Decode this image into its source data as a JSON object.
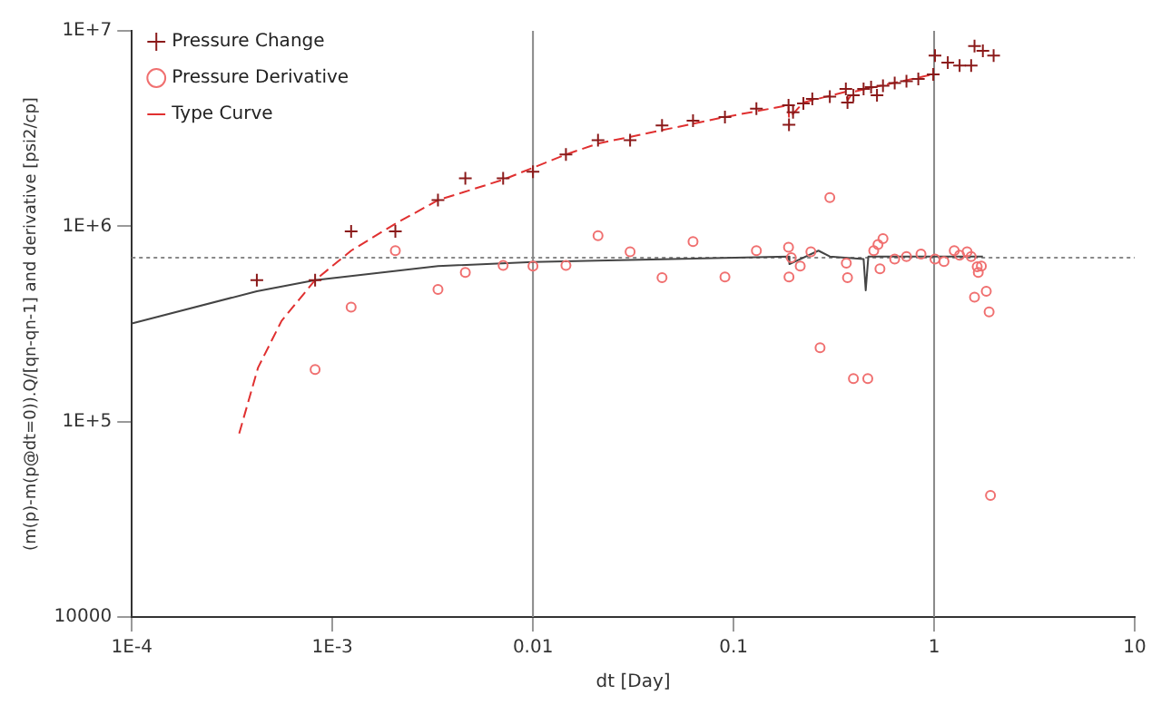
{
  "chart_data": {
    "type": "scatter",
    "xlabel": "dt [Day]",
    "ylabel": "(m(p)-m(p@dt=0)).Q/[qn-qn-1] and derivative [psi2/cp]",
    "log": "xy",
    "grid": false,
    "legend": "top left",
    "xlim": [
      0.0001,
      10
    ],
    "xticks": [
      {
        "value": 0.0001,
        "label": "1E-4"
      },
      {
        "value": 0.001,
        "label": "1E-3"
      },
      0.01,
      0.1,
      1,
      10
    ],
    "ylim": [
      10000,
      10000000
    ],
    "yticks": [
      10000,
      {
        "value": 100000,
        "label": "1E+5"
      },
      {
        "value": 1000000,
        "label": "1E+6"
      },
      {
        "value": 10000000,
        "label": "1E+7"
      }
    ],
    "ref_lines": [
      {
        "axis": "y",
        "value": 690000,
        "label": null,
        "color": "#888888",
        "line_style": "dotted"
      },
      {
        "axis": "x",
        "value": 0.01,
        "label": null,
        "color": "#888888",
        "line_style": "solid"
      },
      {
        "axis": "x",
        "value": 1,
        "label": null,
        "color": "#888888",
        "line_style": "solid"
      }
    ],
    "series": [
      {
        "name": "Pressure Change",
        "marker": "cross",
        "color": "#8b1a1a",
        "x": [
          0.00042,
          0.00082,
          0.00124,
          0.00206,
          0.00336,
          0.0046,
          0.0071,
          0.01,
          0.0146,
          0.0211,
          0.0305,
          0.044,
          0.0628,
          0.0906,
          0.13,
          0.188,
          0.189,
          0.198,
          0.223,
          0.247,
          0.302,
          0.363,
          0.37,
          0.396,
          0.445,
          0.485,
          0.519,
          0.556,
          0.636,
          0.728,
          0.834,
          0.99,
          1.01,
          1.17,
          1.34,
          1.53,
          1.59,
          1.75,
          1.98
        ],
        "values": [
          530000,
          530000,
          940000,
          940000,
          1360000,
          1760000,
          1760000,
          1900000,
          2330000,
          2760000,
          2760000,
          3280000,
          3470000,
          3620000,
          4000000,
          4160000,
          3310000,
          3830000,
          4250000,
          4480000,
          4600000,
          5040000,
          4300000,
          4680000,
          5040000,
          5150000,
          4680000,
          5230000,
          5410000,
          5520000,
          5680000,
          5990000,
          7480000,
          6880000,
          6650000,
          6650000,
          8350000,
          7900000,
          7480000
        ]
      },
      {
        "name": "Pressure Derivative",
        "marker": "circle",
        "color": "#f07070",
        "x": [
          0.00082,
          0.00124,
          0.00206,
          0.00336,
          0.0046,
          0.0071,
          0.01,
          0.0146,
          0.0211,
          0.0305,
          0.044,
          0.0628,
          0.0906,
          0.13,
          0.188,
          0.189,
          0.194,
          0.215,
          0.243,
          0.27,
          0.302,
          0.365,
          0.37,
          0.396,
          0.467,
          0.5,
          0.525,
          0.556,
          0.537,
          0.636,
          0.728,
          0.86,
          1.01,
          1.12,
          1.26,
          1.34,
          1.46,
          1.53,
          1.59,
          1.64,
          1.66,
          1.72,
          1.82,
          1.88,
          1.91
        ],
        "values": [
          185000,
          385000,
          750000,
          475000,
          580000,
          630000,
          625000,
          630000,
          895000,
          740000,
          545000,
          835000,
          550000,
          750000,
          780000,
          550000,
          690000,
          625000,
          740000,
          239000,
          1400000,
          647000,
          545000,
          166000,
          166000,
          750000,
          807000,
          865000,
          605000,
          680000,
          700000,
          720000,
          680000,
          660000,
          750000,
          710000,
          740000,
          700000,
          434000,
          620000,
          580000,
          625000,
          465000,
          364000,
          41900
        ]
      },
      {
        "name": "Type Curve",
        "type": "line",
        "marker": "none",
        "line_style": "dashed",
        "color": "#e03030",
        "x": [
          0.000343,
          0.000426,
          0.000558,
          0.00082,
          0.00124,
          0.00206,
          0.00336,
          0.0071,
          0.0146,
          0.0211,
          0.0906,
          0.188,
          0.189,
          0.223,
          0.363,
          0.37,
          0.396,
          0.99
        ],
        "values": [
          87000,
          189000,
          328000,
          530000,
          750000,
          1030000,
          1360000,
          1730000,
          2330000,
          2650000,
          3620000,
          4160000,
          3570000,
          4300000,
          4880000,
          4400000,
          4880000,
          5990000
        ]
      },
      {
        "type": "line",
        "marker": "none",
        "line_style": "solid",
        "color": "#444444",
        "x": [
          0.0001,
          0.00042,
          0.00082,
          0.00336,
          0.01,
          0.188,
          0.19,
          0.265,
          0.302,
          0.445,
          0.456,
          0.47,
          0.99,
          1.75
        ],
        "values": [
          318000,
          465000,
          530000,
          625000,
          656000,
          700000,
          640000,
          750000,
          700000,
          680000,
          470000,
          700000,
          700000,
          700000
        ]
      }
    ]
  }
}
